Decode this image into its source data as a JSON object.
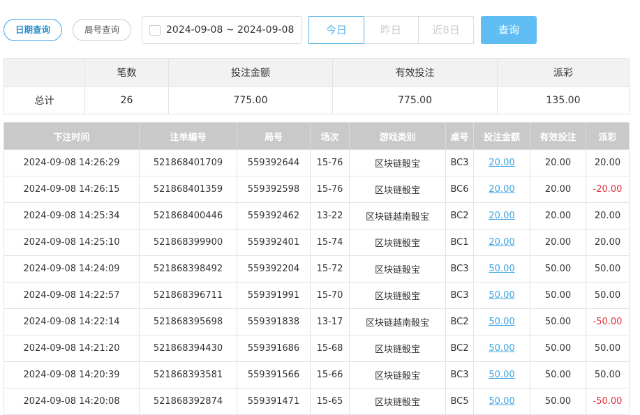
{
  "toolbar": {
    "tabs": [
      "日期查询",
      "局号查询"
    ],
    "date_range": "2024-09-08 ~ 2024-09-08",
    "quick": [
      "今日",
      "昨日",
      "近8日"
    ],
    "search": "查询"
  },
  "summary": {
    "headers": [
      "笔数",
      "投注金额",
      "有效投注",
      "派彩"
    ],
    "row_label": "总计",
    "values": [
      "26",
      "775.00",
      "775.00",
      "135.00"
    ]
  },
  "table": {
    "headers": [
      "下注时间",
      "注单编号",
      "局号",
      "场次",
      "游戏类别",
      "桌号",
      "投注金额",
      "有效投注",
      "派彩"
    ],
    "rows": [
      [
        "2024-09-08 14:26:29",
        "521868401709",
        "559392644",
        "15-76",
        "区块链骰宝",
        "BC3",
        "20.00",
        "20.00",
        "20.00"
      ],
      [
        "2024-09-08 14:26:15",
        "521868401359",
        "559392598",
        "15-76",
        "区块链骰宝",
        "BC6",
        "20.00",
        "20.00",
        "-20.00"
      ],
      [
        "2024-09-08 14:25:34",
        "521868400446",
        "559392462",
        "13-22",
        "区块链越南骰宝",
        "BC2",
        "20.00",
        "20.00",
        "20.00"
      ],
      [
        "2024-09-08 14:25:10",
        "521868399900",
        "559392401",
        "15-74",
        "区块链骰宝",
        "BC1",
        "20.00",
        "20.00",
        "20.00"
      ],
      [
        "2024-09-08 14:24:09",
        "521868398492",
        "559392204",
        "15-72",
        "区块链骰宝",
        "BC3",
        "50.00",
        "50.00",
        "50.00"
      ],
      [
        "2024-09-08 14:22:57",
        "521868396711",
        "559391991",
        "15-70",
        "区块链骰宝",
        "BC3",
        "50.00",
        "50.00",
        "50.00"
      ],
      [
        "2024-09-08 14:22:14",
        "521868395698",
        "559391838",
        "13-17",
        "区块链越南骰宝",
        "BC2",
        "50.00",
        "50.00",
        "-50.00"
      ],
      [
        "2024-09-08 14:21:20",
        "521868394430",
        "559391686",
        "15-68",
        "区块链骰宝",
        "BC2",
        "50.00",
        "50.00",
        "50.00"
      ],
      [
        "2024-09-08 14:20:39",
        "521868393581",
        "559391566",
        "15-66",
        "区块链骰宝",
        "BC3",
        "50.00",
        "50.00",
        "50.00"
      ],
      [
        "2024-09-08 14:20:08",
        "521868392874",
        "559391471",
        "15-65",
        "区块链骰宝",
        "BC5",
        "50.00",
        "50.00",
        "-50.00"
      ]
    ]
  }
}
